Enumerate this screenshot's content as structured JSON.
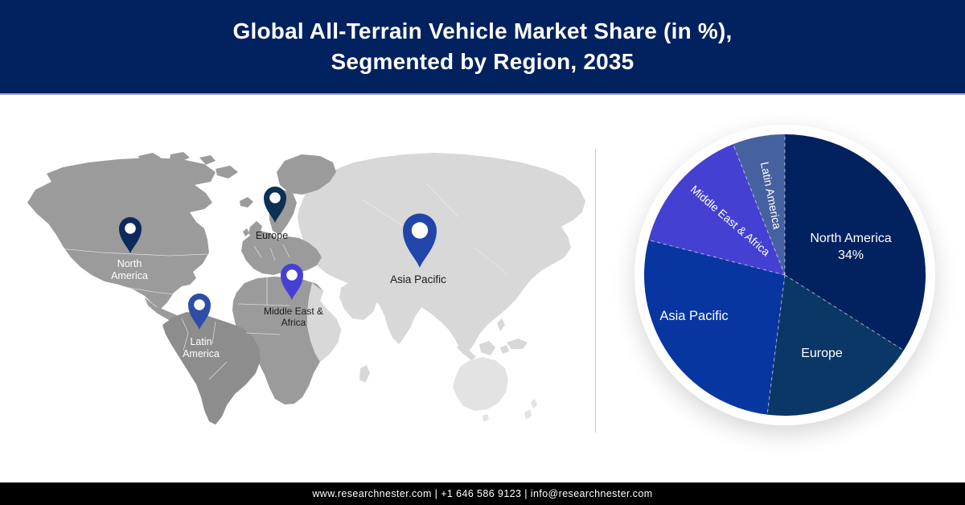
{
  "header": {
    "title_lines": [
      "Global All-Terrain Vehicle Market Share (in %),",
      "Segmented by Region, 2035"
    ],
    "bg_color": "#02215f",
    "text_color": "#ffffff"
  },
  "map": {
    "land_colors": {
      "highlight_gray": "#9b9b9b",
      "south_america_gray": "#8d8d8d",
      "asia_light_gray": "#d8d8d8",
      "oceania_lighter_gray": "#e3e3e3"
    },
    "pins": [
      {
        "region": "North America",
        "label_lines": [
          "North",
          "America"
        ],
        "pin_color": "#0c2a5c",
        "label_color": "#ffffff",
        "icon": "map-pin-icon"
      },
      {
        "region": "Europe",
        "label_lines": [
          "Europe"
        ],
        "pin_color": "#0d3054",
        "label_color": "#1b1b1b",
        "icon": "map-pin-icon"
      },
      {
        "region": "Latin America",
        "label_lines": [
          "Latin",
          "America"
        ],
        "pin_color": "#2d4da6",
        "label_color": "#ffffff",
        "icon": "map-pin-icon"
      },
      {
        "region": "Middle East & Africa",
        "label_lines": [
          "Middle East &",
          "Africa"
        ],
        "pin_color": "#4540d4",
        "label_color": "#1b1b1b",
        "icon": "map-pin-icon"
      },
      {
        "region": "Asia Pacific",
        "label_lines": [
          "Asia Pacific"
        ],
        "pin_color": "#2145a8",
        "label_color": "#1b1b1b",
        "icon": "map-pin-icon"
      }
    ]
  },
  "chart_data": {
    "type": "pie",
    "title": "Global All-Terrain Vehicle Market Share (in %), Segmented by Region, 2035",
    "categories": [
      "North America",
      "Europe",
      "Asia Pacific",
      "Middle East & Africa",
      "Latin America"
    ],
    "values": [
      34,
      18,
      27,
      15,
      6
    ],
    "unit": "%",
    "colors": [
      "#02215f",
      "#0b3766",
      "#0836a1",
      "#4340d2",
      "#46619f"
    ],
    "start_angle_deg": 0,
    "direction": "clockwise",
    "legend": "none",
    "label_color": "#ffffff",
    "slice_labels": [
      {
        "lines": [
          "North America",
          "34%"
        ]
      },
      {
        "lines": [
          "Europe"
        ]
      },
      {
        "lines": [
          "Asia Pacific"
        ]
      },
      {
        "lines": [
          "Middle East & Africa"
        ]
      },
      {
        "lines": [
          "Latin America"
        ]
      }
    ]
  },
  "footer": {
    "text": "www.researchnester.com | +1 646 586 9123 | info@researchnester.com",
    "bg_color": "#000000",
    "text_color": "#ffffff"
  }
}
